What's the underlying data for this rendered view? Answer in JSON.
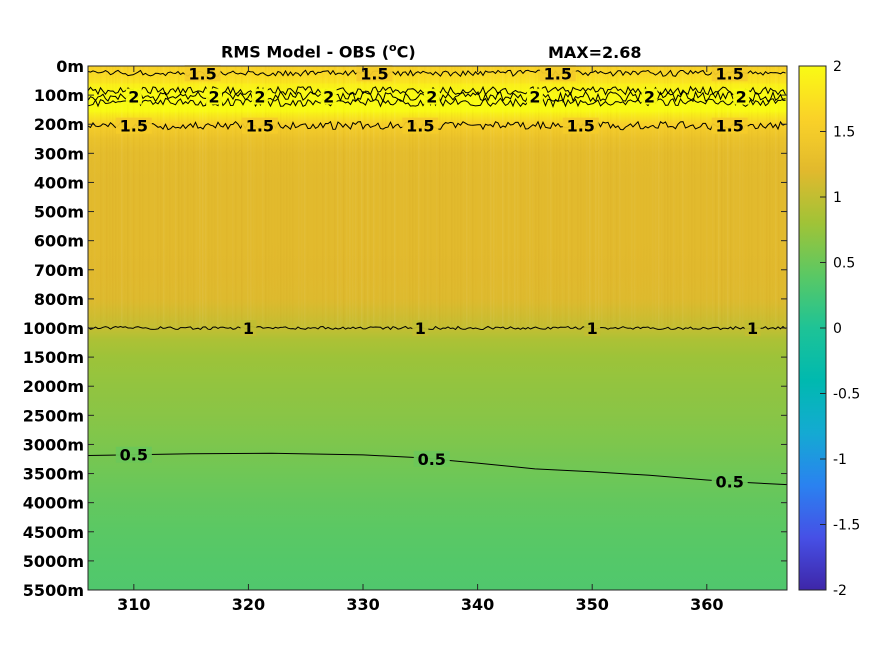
{
  "chart_data": [
    {
      "type": "heatmap",
      "title": "RMS Model - OBS (",
      "title_unit_sup": "o",
      "title_unit_tail": "C)",
      "annotation": "MAX=2.68",
      "x_ticks": [
        310,
        320,
        330,
        340,
        350,
        360
      ],
      "xlim": [
        306,
        367
      ],
      "y_tick_labels": [
        "0m",
        "100m",
        "200m",
        "300m",
        "400m",
        "500m",
        "600m",
        "700m",
        "800m",
        "1000m",
        "1500m",
        "2000m",
        "2500m",
        "3000m",
        "3500m",
        "4000m",
        "4500m",
        "5000m",
        "5500m"
      ],
      "y_axis_direction": "depth increases downward (uneven level spacing)",
      "grid": false,
      "colormap": "parula",
      "colorbar": {
        "location": "right",
        "range": [
          -2,
          2
        ],
        "tick_labels": [
          "2",
          "1.5",
          "1",
          "0.5",
          "0",
          "-0.5",
          "-1",
          "-1.5",
          "-2"
        ],
        "tick_values": [
          2,
          1.5,
          1,
          0.5,
          0,
          -0.5,
          -1,
          -1.5,
          -2
        ]
      },
      "depth_profile": {
        "levels": [
          "0m",
          "50m",
          "100m",
          "150m",
          "200m",
          "250m",
          "300m",
          "400m",
          "500m",
          "600m",
          "700m",
          "800m",
          "1000m",
          "1200m",
          "1500m",
          "2000m",
          "2500m",
          "3000m",
          "3500m",
          "4000m",
          "4500m",
          "5000m",
          "5500m"
        ],
        "values": [
          1.55,
          1.75,
          2.05,
          2.0,
          1.55,
          1.35,
          1.25,
          1.22,
          1.22,
          1.22,
          1.2,
          1.18,
          1.02,
          0.88,
          0.78,
          0.72,
          0.67,
          0.6,
          0.52,
          0.45,
          0.4,
          0.36,
          0.33
        ]
      },
      "contours": [
        {
          "level": "1.5",
          "depth": "between 0m and 100m",
          "label_positions_x": [
            316,
            331,
            347,
            362
          ]
        },
        {
          "level": "2",
          "depth": "near 100m",
          "label_positions_x": [
            310,
            317,
            321,
            327,
            336,
            345,
            355,
            363
          ]
        },
        {
          "level": "1.5",
          "depth": "near 200m",
          "label_positions_x": [
            310,
            321,
            335,
            349,
            362
          ]
        },
        {
          "level": "1",
          "depth": "near 1000m",
          "label_positions_x": [
            320,
            335,
            350,
            364
          ]
        },
        {
          "level": "0.5",
          "depth": "3000m to 3500m, deepening eastward",
          "label_positions_x": [
            310,
            336,
            362
          ],
          "path": [
            [
              306,
              3190
            ],
            [
              315,
              3160
            ],
            [
              322,
              3150
            ],
            [
              330,
              3180
            ],
            [
              335,
              3230
            ],
            [
              340,
              3320
            ],
            [
              345,
              3420
            ],
            [
              350,
              3470
            ],
            [
              355,
              3530
            ],
            [
              360,
              3610
            ],
            [
              363,
              3650
            ],
            [
              367,
              3690
            ]
          ]
        }
      ]
    }
  ]
}
